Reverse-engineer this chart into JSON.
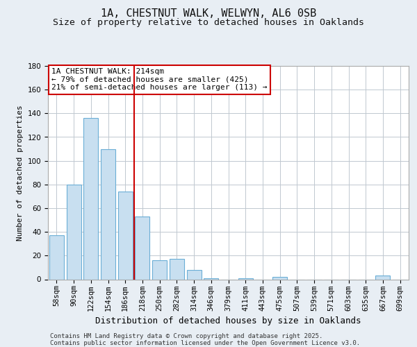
{
  "title": "1A, CHESTNUT WALK, WELWYN, AL6 0SB",
  "subtitle": "Size of property relative to detached houses in Oaklands",
  "xlabel": "Distribution of detached houses by size in Oaklands",
  "ylabel": "Number of detached properties",
  "bar_color": "#c8dff0",
  "bar_edge_color": "#6baed6",
  "categories": [
    "58sqm",
    "90sqm",
    "122sqm",
    "154sqm",
    "186sqm",
    "218sqm",
    "250sqm",
    "282sqm",
    "314sqm",
    "346sqm",
    "379sqm",
    "411sqm",
    "443sqm",
    "475sqm",
    "507sqm",
    "539sqm",
    "571sqm",
    "603sqm",
    "635sqm",
    "667sqm",
    "699sqm"
  ],
  "values": [
    37,
    80,
    136,
    110,
    74,
    53,
    16,
    17,
    8,
    1,
    0,
    1,
    0,
    2,
    0,
    0,
    0,
    0,
    0,
    3,
    0
  ],
  "vline_index": 5,
  "vline_color": "#cc0000",
  "annotation_line1": "1A CHESTNUT WALK: 214sqm",
  "annotation_line2": "← 79% of detached houses are smaller (425)",
  "annotation_line3": "21% of semi-detached houses are larger (113) →",
  "annotation_box_color": "#ffffff",
  "annotation_box_edge": "#cc0000",
  "ylim": [
    0,
    180
  ],
  "yticks": [
    0,
    20,
    40,
    60,
    80,
    100,
    120,
    140,
    160,
    180
  ],
  "background_color": "#e8eef4",
  "plot_bg_color": "#ffffff",
  "grid_color": "#c0c8d0",
  "footer_line1": "Contains HM Land Registry data © Crown copyright and database right 2025.",
  "footer_line2": "Contains public sector information licensed under the Open Government Licence v3.0.",
  "title_fontsize": 11,
  "subtitle_fontsize": 9.5,
  "xlabel_fontsize": 9,
  "ylabel_fontsize": 8,
  "tick_fontsize": 7.5,
  "annotation_fontsize": 8,
  "footer_fontsize": 6.5
}
